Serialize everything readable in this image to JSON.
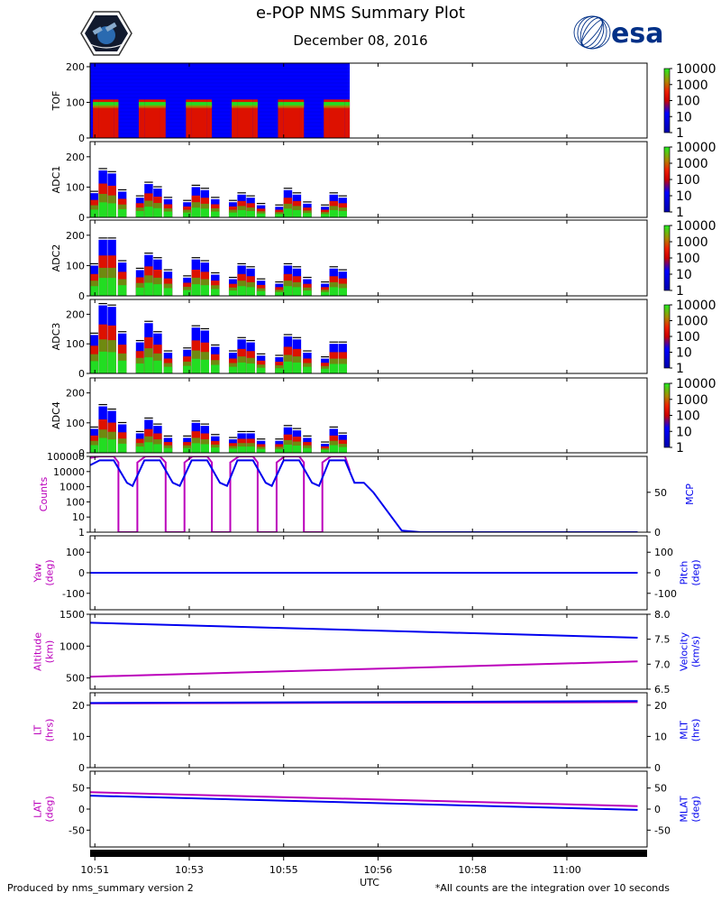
{
  "header": {
    "title": "e-POP NMS Summary Plot",
    "date": "December 08, 2016",
    "esa_logo_text": "esa"
  },
  "footer": {
    "left": "Produced by nms_summary version 2",
    "right": "*All counts are the integration over 10 seconds"
  },
  "colors": {
    "magenta": "#bb00bb",
    "blue": "#0000ee",
    "spec_blue": "#0000ff",
    "spec_red": "#dd1100",
    "spec_green": "#22dd22",
    "esa_navy": "#003087"
  },
  "chart_data": [
    {
      "type": "heatmap",
      "ylabel": "TOF",
      "yticks": [
        0,
        100,
        200
      ],
      "ylim": [
        0,
        210
      ],
      "colorbar_ticks": [
        "10000",
        "1000",
        "100",
        "10",
        "1"
      ],
      "bursts": [
        {
          "t0": 10.846,
          "t1": 10.858,
          "peak": 98
        },
        {
          "t0": 10.858,
          "t1": 10.89,
          "peak": 98
        },
        {
          "t0": 10.89,
          "t1": 10.9,
          "peak": 98
        },
        {
          "t0": 10.943,
          "t1": 10.955,
          "peak": 98
        },
        {
          "t0": 10.955,
          "t1": 10.988,
          "peak": 98
        },
        {
          "t0": 10.988,
          "t1": 11.0,
          "peak": 98
        },
        {
          "t0": 11.043,
          "t1": 11.055,
          "peak": 98
        },
        {
          "t0": 11.055,
          "t1": 11.088,
          "peak": 98
        },
        {
          "t0": 11.088,
          "t1": 11.098,
          "peak": 98
        },
        {
          "t0": 11.14,
          "t1": 11.152,
          "peak": 98
        },
        {
          "t0": 11.152,
          "t1": 11.185,
          "peak": 98
        },
        {
          "t0": 11.185,
          "t1": 11.195,
          "peak": 98
        },
        {
          "t0": 11.238,
          "t1": 11.25,
          "peak": 98
        },
        {
          "t0": 11.25,
          "t1": 11.283,
          "peak": 98
        },
        {
          "t0": 11.283,
          "t1": 11.293,
          "peak": 98
        },
        {
          "t0": 11.335,
          "t1": 11.347,
          "peak": 98
        },
        {
          "t0": 11.347,
          "t1": 11.38,
          "peak": 98
        },
        {
          "t0": 11.38,
          "t1": 11.39,
          "peak": 98
        }
      ],
      "data_end": 11.39
    },
    {
      "type": "heatmap",
      "ylabel": "ADC1",
      "yticks": [
        0,
        100,
        200
      ],
      "ylim": [
        0,
        250
      ],
      "colorbar_ticks": [
        "10000",
        "1000",
        "100",
        "10",
        "1"
      ],
      "bars": [
        {
          "t0": 10.84,
          "t1": 10.858,
          "h": 80
        },
        {
          "t0": 10.858,
          "t1": 10.877,
          "h": 155
        },
        {
          "t0": 10.877,
          "t1": 10.896,
          "h": 145
        },
        {
          "t0": 10.899,
          "t1": 10.918,
          "h": 85
        },
        {
          "t0": 10.937,
          "t1": 10.955,
          "h": 65
        },
        {
          "t0": 10.955,
          "t1": 10.974,
          "h": 110
        },
        {
          "t0": 10.974,
          "t1": 10.993,
          "h": 95
        },
        {
          "t0": 10.996,
          "t1": 11.015,
          "h": 60
        },
        {
          "t0": 11.037,
          "t1": 11.055,
          "h": 50
        },
        {
          "t0": 11.055,
          "t1": 11.074,
          "h": 100
        },
        {
          "t0": 11.074,
          "t1": 11.093,
          "h": 90
        },
        {
          "t0": 11.096,
          "t1": 11.115,
          "h": 60
        },
        {
          "t0": 11.134,
          "t1": 11.152,
          "h": 50
        },
        {
          "t0": 11.152,
          "t1": 11.171,
          "h": 75
        },
        {
          "t0": 11.171,
          "t1": 11.19,
          "h": 65
        },
        {
          "t0": 11.193,
          "t1": 11.212,
          "h": 40
        },
        {
          "t0": 11.232,
          "t1": 11.25,
          "h": 35
        },
        {
          "t0": 11.25,
          "t1": 11.269,
          "h": 90
        },
        {
          "t0": 11.269,
          "t1": 11.288,
          "h": 75
        },
        {
          "t0": 11.291,
          "t1": 11.31,
          "h": 45
        },
        {
          "t0": 11.329,
          "t1": 11.347,
          "h": 35
        },
        {
          "t0": 11.347,
          "t1": 11.366,
          "h": 75
        },
        {
          "t0": 11.366,
          "t1": 11.385,
          "h": 65
        }
      ]
    },
    {
      "type": "heatmap",
      "ylabel": "ADC2",
      "yticks": [
        0,
        100,
        200
      ],
      "ylim": [
        0,
        250
      ],
      "colorbar_ticks": [
        "10000",
        "1000",
        "100",
        "10",
        "1"
      ],
      "bars": [
        {
          "t0": 10.84,
          "t1": 10.858,
          "h": 100
        },
        {
          "t0": 10.858,
          "t1": 10.877,
          "h": 185
        },
        {
          "t0": 10.877,
          "t1": 10.896,
          "h": 185
        },
        {
          "t0": 10.899,
          "t1": 10.918,
          "h": 110
        },
        {
          "t0": 10.937,
          "t1": 10.955,
          "h": 85
        },
        {
          "t0": 10.955,
          "t1": 10.974,
          "h": 135
        },
        {
          "t0": 10.974,
          "t1": 10.993,
          "h": 120
        },
        {
          "t0": 10.996,
          "t1": 11.015,
          "h": 80
        },
        {
          "t0": 11.037,
          "t1": 11.055,
          "h": 60
        },
        {
          "t0": 11.055,
          "t1": 11.074,
          "h": 120
        },
        {
          "t0": 11.074,
          "t1": 11.093,
          "h": 110
        },
        {
          "t0": 11.096,
          "t1": 11.115,
          "h": 70
        },
        {
          "t0": 11.134,
          "t1": 11.152,
          "h": 55
        },
        {
          "t0": 11.152,
          "t1": 11.171,
          "h": 100
        },
        {
          "t0": 11.171,
          "t1": 11.19,
          "h": 90
        },
        {
          "t0": 11.193,
          "t1": 11.212,
          "h": 50
        },
        {
          "t0": 11.232,
          "t1": 11.25,
          "h": 40
        },
        {
          "t0": 11.25,
          "t1": 11.269,
          "h": 100
        },
        {
          "t0": 11.269,
          "t1": 11.288,
          "h": 90
        },
        {
          "t0": 11.291,
          "t1": 11.31,
          "h": 55
        },
        {
          "t0": 11.329,
          "t1": 11.347,
          "h": 40
        },
        {
          "t0": 11.347,
          "t1": 11.366,
          "h": 90
        },
        {
          "t0": 11.366,
          "t1": 11.385,
          "h": 80
        }
      ]
    },
    {
      "type": "heatmap",
      "ylabel": "ADC3",
      "yticks": [
        0,
        100,
        200
      ],
      "ylim": [
        0,
        250
      ],
      "colorbar_ticks": [
        "10000",
        "1000",
        "100",
        "10",
        "1"
      ],
      "bars": [
        {
          "t0": 10.84,
          "t1": 10.858,
          "h": 130
        },
        {
          "t0": 10.858,
          "t1": 10.877,
          "h": 230
        },
        {
          "t0": 10.877,
          "t1": 10.896,
          "h": 225
        },
        {
          "t0": 10.899,
          "t1": 10.918,
          "h": 135
        },
        {
          "t0": 10.937,
          "t1": 10.955,
          "h": 105
        },
        {
          "t0": 10.955,
          "t1": 10.974,
          "h": 170
        },
        {
          "t0": 10.974,
          "t1": 10.993,
          "h": 135
        },
        {
          "t0": 10.996,
          "t1": 11.015,
          "h": 70
        },
        {
          "t0": 11.037,
          "t1": 11.055,
          "h": 80
        },
        {
          "t0": 11.055,
          "t1": 11.074,
          "h": 155
        },
        {
          "t0": 11.074,
          "t1": 11.093,
          "h": 145
        },
        {
          "t0": 11.096,
          "t1": 11.115,
          "h": 90
        },
        {
          "t0": 11.134,
          "t1": 11.152,
          "h": 70
        },
        {
          "t0": 11.152,
          "t1": 11.171,
          "h": 115
        },
        {
          "t0": 11.171,
          "t1": 11.19,
          "h": 105
        },
        {
          "t0": 11.193,
          "t1": 11.212,
          "h": 60
        },
        {
          "t0": 11.232,
          "t1": 11.25,
          "h": 55
        },
        {
          "t0": 11.25,
          "t1": 11.269,
          "h": 125
        },
        {
          "t0": 11.269,
          "t1": 11.288,
          "h": 115
        },
        {
          "t0": 11.291,
          "t1": 11.31,
          "h": 70
        },
        {
          "t0": 11.329,
          "t1": 11.347,
          "h": 50
        },
        {
          "t0": 11.347,
          "t1": 11.366,
          "h": 100
        },
        {
          "t0": 11.366,
          "t1": 11.385,
          "h": 100
        }
      ]
    },
    {
      "type": "heatmap",
      "ylabel": "ADC4",
      "yticks": [
        0,
        100,
        200
      ],
      "ylim": [
        0,
        250
      ],
      "colorbar_ticks": [
        "10000",
        "1000",
        "100",
        "10",
        "1"
      ],
      "bars": [
        {
          "t0": 10.84,
          "t1": 10.858,
          "h": 80
        },
        {
          "t0": 10.858,
          "t1": 10.877,
          "h": 155
        },
        {
          "t0": 10.877,
          "t1": 10.896,
          "h": 140
        },
        {
          "t0": 10.899,
          "t1": 10.918,
          "h": 95
        },
        {
          "t0": 10.937,
          "t1": 10.955,
          "h": 65
        },
        {
          "t0": 10.955,
          "t1": 10.974,
          "h": 110
        },
        {
          "t0": 10.974,
          "t1": 10.993,
          "h": 90
        },
        {
          "t0": 10.996,
          "t1": 11.015,
          "h": 50
        },
        {
          "t0": 11.037,
          "t1": 11.055,
          "h": 50
        },
        {
          "t0": 11.055,
          "t1": 11.074,
          "h": 100
        },
        {
          "t0": 11.074,
          "t1": 11.093,
          "h": 90
        },
        {
          "t0": 11.096,
          "t1": 11.115,
          "h": 55
        },
        {
          "t0": 11.134,
          "t1": 11.152,
          "h": 45
        },
        {
          "t0": 11.152,
          "t1": 11.171,
          "h": 65
        },
        {
          "t0": 11.171,
          "t1": 11.19,
          "h": 65
        },
        {
          "t0": 11.193,
          "t1": 11.212,
          "h": 40
        },
        {
          "t0": 11.232,
          "t1": 11.25,
          "h": 40
        },
        {
          "t0": 11.25,
          "t1": 11.269,
          "h": 85
        },
        {
          "t0": 11.269,
          "t1": 11.288,
          "h": 75
        },
        {
          "t0": 11.291,
          "t1": 11.31,
          "h": 50
        },
        {
          "t0": 11.329,
          "t1": 11.347,
          "h": 30
        },
        {
          "t0": 11.347,
          "t1": 11.366,
          "h": 80
        },
        {
          "t0": 11.366,
          "t1": 11.385,
          "h": 60
        }
      ]
    },
    {
      "type": "line",
      "ylabel_left": "Counts",
      "ylabel_right": "MCP",
      "yscale_left": "log",
      "ylim_left": [
        1,
        100000
      ],
      "yticks_left": [
        "100000",
        "10000",
        "1000",
        "100",
        "10",
        "1"
      ],
      "ylim_right": [
        0,
        95
      ],
      "yticks_right": [
        0,
        50
      ],
      "series": [
        {
          "axis": "left",
          "color": "magenta",
          "x": [
            10.84,
            10.86,
            10.89,
            10.9,
            10.9,
            10.9,
            10.94,
            10.94,
            10.957,
            10.988,
            11.0,
            11.0,
            11.0,
            11.04,
            11.04,
            11.057,
            11.088,
            11.098,
            11.098,
            11.098,
            11.137,
            11.137,
            11.155,
            11.185,
            11.195,
            11.195,
            11.195,
            11.235,
            11.235,
            11.252,
            11.283,
            11.293,
            11.293,
            11.293,
            11.332,
            11.332,
            11.35,
            11.38,
            11.39
          ],
          "y": [
            80000,
            100000,
            100000,
            40000,
            1,
            1,
            1,
            40000,
            100000,
            100000,
            40000,
            1,
            1,
            1,
            40000,
            100000,
            100000,
            40000,
            1,
            1,
            1,
            40000,
            100000,
            100000,
            40000,
            1,
            1,
            1,
            40000,
            100000,
            100000,
            40000,
            1,
            1,
            1,
            40000,
            100000,
            100000,
            12000
          ]
        },
        {
          "axis": "right",
          "color": "blue",
          "x": [
            10.84,
            10.86,
            10.89,
            10.918,
            10.93,
            10.955,
            10.988,
            11.015,
            11.03,
            11.055,
            11.088,
            11.115,
            11.13,
            11.152,
            11.185,
            11.212,
            11.225,
            11.25,
            11.283,
            11.31,
            11.325,
            11.347,
            11.38,
            11.4,
            11.42,
            11.44,
            11.5,
            11.54,
            12.0
          ],
          "y": [
            84,
            90,
            90,
            62,
            58,
            90,
            90,
            62,
            58,
            90,
            90,
            62,
            58,
            90,
            90,
            62,
            58,
            90,
            90,
            62,
            58,
            90,
            90,
            62,
            62,
            50,
            2,
            0,
            0
          ]
        }
      ]
    },
    {
      "type": "line",
      "ylabel_left": "Yaw\n(deg)",
      "ylabel_right": "Pitch\n(deg)",
      "ylim_left": [
        -180,
        180
      ],
      "yticks_left": [
        100,
        0,
        -100
      ],
      "ylim_right": [
        -180,
        180
      ],
      "yticks_right": [
        100,
        0,
        -100
      ],
      "series": [
        {
          "axis": "left",
          "color": "magenta",
          "x": [
            10.84,
            12.0
          ],
          "y": [
            0,
            0
          ]
        },
        {
          "axis": "right",
          "color": "blue",
          "x": [
            10.84,
            12.0
          ],
          "y": [
            0,
            0
          ]
        }
      ]
    },
    {
      "type": "line",
      "ylabel_left": "Altitude\n(km)",
      "ylabel_right": "Velocity\n(km/s)",
      "ylim_left": [
        325,
        1500
      ],
      "yticks_left": [
        1500,
        1000,
        500
      ],
      "ylim_right": [
        6.5,
        8.0
      ],
      "yticks_right": [
        "8.0",
        "7.5",
        "7.0",
        "6.5"
      ],
      "series": [
        {
          "axis": "left",
          "color": "magenta",
          "x": [
            10.84,
            12.0
          ],
          "y": [
            520,
            760
          ]
        },
        {
          "axis": "right",
          "color": "blue",
          "x": [
            10.84,
            12.0
          ],
          "y": [
            7.83,
            7.53
          ]
        }
      ]
    },
    {
      "type": "line",
      "ylabel_left": "LT\n(hrs)",
      "ylabel_right": "MLT\n(hrs)",
      "ylim_left": [
        0,
        24
      ],
      "yticks_left": [
        20,
        10,
        0
      ],
      "ylim_right": [
        0,
        24
      ],
      "yticks_right": [
        20,
        10,
        0
      ],
      "series": [
        {
          "axis": "left",
          "color": "magenta",
          "x": [
            10.84,
            12.0
          ],
          "y": [
            20.6,
            21.0
          ]
        },
        {
          "axis": "right",
          "color": "blue",
          "x": [
            10.84,
            12.0
          ],
          "y": [
            20.7,
            21.3
          ]
        }
      ]
    },
    {
      "type": "line",
      "ylabel_left": "LAT\n(deg)",
      "ylabel_right": "MLAT\n(deg)",
      "ylim_left": [
        -90,
        90
      ],
      "yticks_left": [
        50,
        0,
        -50
      ],
      "ylim_right": [
        -90,
        90
      ],
      "yticks_right": [
        50,
        0,
        -50
      ],
      "series": [
        {
          "axis": "left",
          "color": "magenta",
          "x": [
            10.84,
            12.0
          ],
          "y": [
            40,
            7
          ]
        },
        {
          "axis": "right",
          "color": "blue",
          "x": [
            10.84,
            12.0
          ],
          "y": [
            32,
            -2
          ]
        }
      ]
    }
  ],
  "x_axis": {
    "label": "UTC",
    "xlim": [
      10.84,
      12.02
    ],
    "ticks": [
      {
        "v": 10.85,
        "label": "10:51"
      },
      {
        "v": 11.05,
        "label": "10:53"
      },
      {
        "v": 11.25,
        "label": "10:55"
      },
      {
        "v": 11.45,
        "label": "10:56"
      },
      {
        "v": 11.65,
        "label": "10:58"
      },
      {
        "v": 11.85,
        "label": "11:00"
      }
    ]
  }
}
